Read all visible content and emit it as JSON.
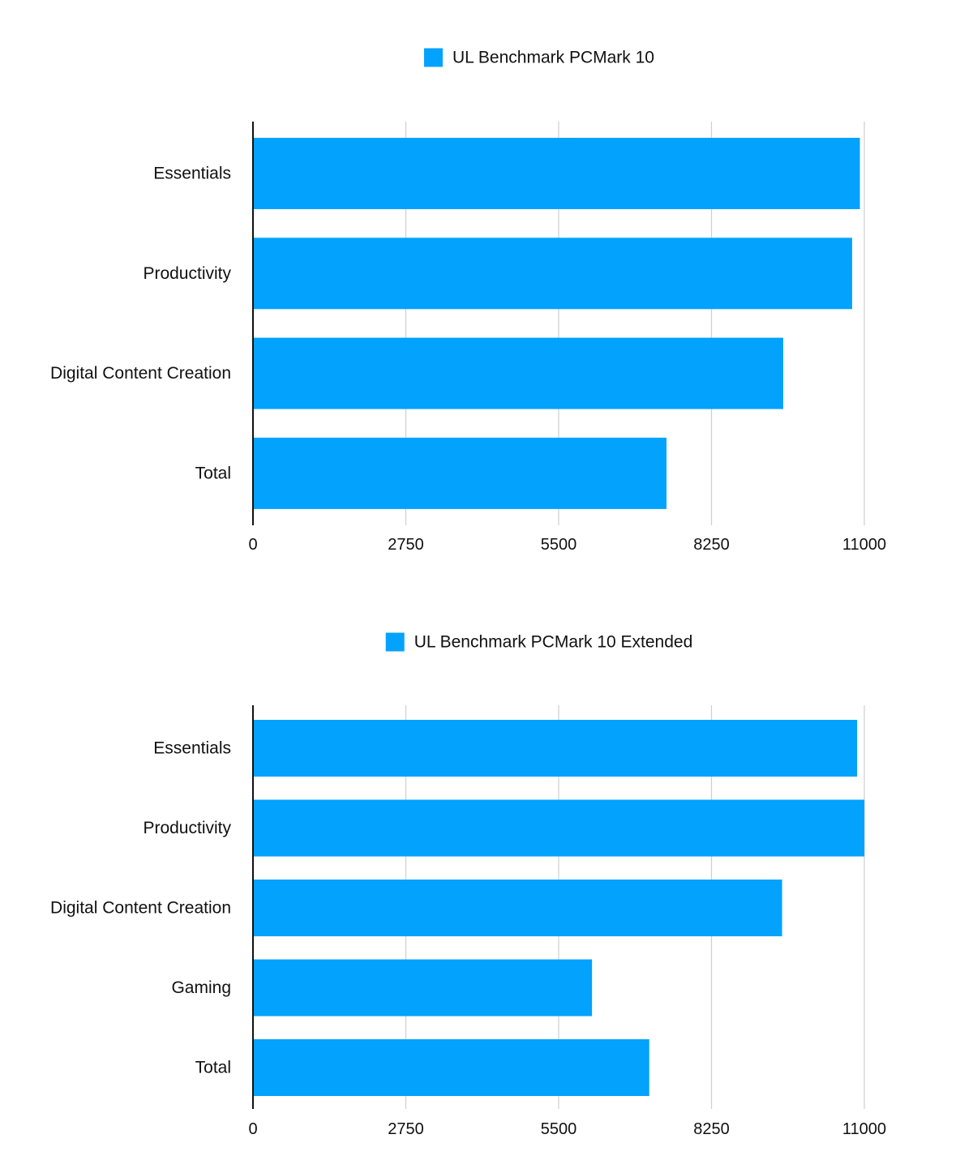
{
  "chart_data": [
    {
      "type": "bar",
      "orientation": "horizontal",
      "categories": [
        "Essentials",
        "Productivity",
        "Digital Content Creation",
        "Total"
      ],
      "series": [
        {
          "name": "UL Benchmark PCMark 10",
          "values": [
            10920,
            10780,
            9540,
            7440
          ]
        }
      ],
      "xlim": [
        0,
        11000
      ],
      "xticks": [
        "0",
        "2750",
        "5500",
        "8250",
        "11000"
      ],
      "grid": "vertical",
      "legend": "top-center",
      "colors": {
        "bar": "#03A2FD",
        "grid": "#cfcfcf",
        "axis": "#111111"
      }
    },
    {
      "type": "bar",
      "orientation": "horizontal",
      "categories": [
        "Essentials",
        "Productivity",
        "Digital Content Creation",
        "Gaming",
        "Total"
      ],
      "series": [
        {
          "name": "UL Benchmark PCMark 10 Extended",
          "values": [
            10870,
            11000,
            9520,
            6100,
            7130
          ]
        }
      ],
      "xlim": [
        0,
        11000
      ],
      "xticks": [
        "0",
        "2750",
        "5500",
        "8250",
        "11000"
      ],
      "grid": "vertical",
      "legend": "top-center",
      "colors": {
        "bar": "#03A2FD",
        "grid": "#cfcfcf",
        "axis": "#111111"
      }
    }
  ]
}
